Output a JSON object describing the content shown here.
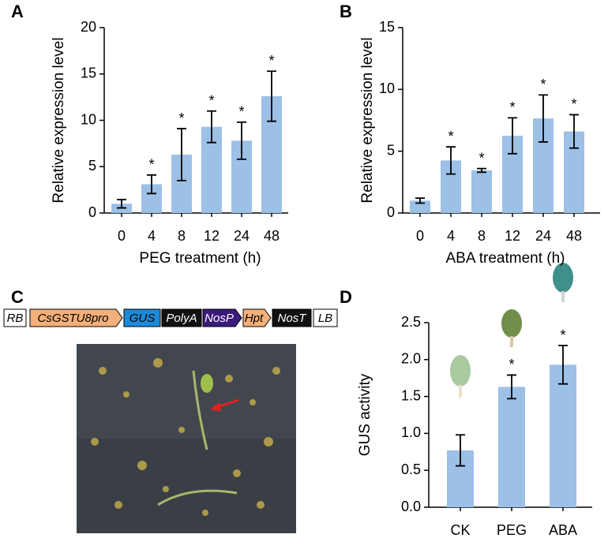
{
  "chart_data": [
    {
      "type": "bar",
      "panel_label": "A",
      "xlabel": "PEG treatment (h)",
      "ylabel": "Relative expression level",
      "categories": [
        "0",
        "4",
        "8",
        "12",
        "24",
        "48"
      ],
      "values": [
        1.0,
        3.1,
        6.3,
        9.3,
        7.8,
        12.6
      ],
      "errors": [
        0.45,
        1.0,
        2.8,
        1.7,
        2.0,
        2.7
      ],
      "annotations": [
        {
          "category": "4",
          "text": "*"
        },
        {
          "category": "8",
          "text": "*"
        },
        {
          "category": "12",
          "text": "*"
        },
        {
          "category": "24",
          "text": "*"
        },
        {
          "category": "48",
          "text": "*"
        }
      ],
      "color": "#9dc0e6",
      "ylim": [
        0,
        20
      ],
      "yticks": [
        0,
        5,
        10,
        15,
        20
      ]
    },
    {
      "type": "bar",
      "panel_label": "B",
      "xlabel": "ABA treatment (h)",
      "ylabel": "Relative expression level",
      "categories": [
        "0",
        "4",
        "8",
        "12",
        "24",
        "48"
      ],
      "values": [
        1.0,
        4.25,
        3.45,
        6.25,
        7.65,
        6.6
      ],
      "errors": [
        0.2,
        1.1,
        0.15,
        1.45,
        1.9,
        1.35
      ],
      "annotations": [
        {
          "category": "4",
          "text": "*"
        },
        {
          "category": "8",
          "text": "*"
        },
        {
          "category": "12",
          "text": "*"
        },
        {
          "category": "24",
          "text": "*"
        },
        {
          "category": "48",
          "text": "*"
        }
      ],
      "color": "#9dc0e6",
      "ylim": [
        0,
        15
      ],
      "yticks": [
        0,
        5,
        10,
        15
      ]
    },
    {
      "type": "bar",
      "panel_label": "D",
      "ylabel": "GUS activity",
      "categories": [
        "CK",
        "PEG",
        "ABA"
      ],
      "values": [
        0.77,
        1.63,
        1.93
      ],
      "errors": [
        0.21,
        0.16,
        0.26
      ],
      "annotations": [
        {
          "category": "PEG",
          "text": "*"
        },
        {
          "category": "ABA",
          "text": "*"
        }
      ],
      "color": "#9dc0e6",
      "ylim": [
        0,
        2.5
      ],
      "yticks": [
        {
          "value": 0,
          "label": "0.0"
        },
        0.5,
        {
          "value": 1,
          "label": "1.0"
        },
        1.5,
        {
          "value": 2,
          "label": "2.0"
        },
        2.5
      ]
    }
  ],
  "construct": {
    "panel_label": "C",
    "elements": [
      "RB",
      "CsGSTU8pro",
      "GUS",
      "PolyA",
      "NosP",
      "Hpt",
      "NosT",
      "LB"
    ]
  }
}
